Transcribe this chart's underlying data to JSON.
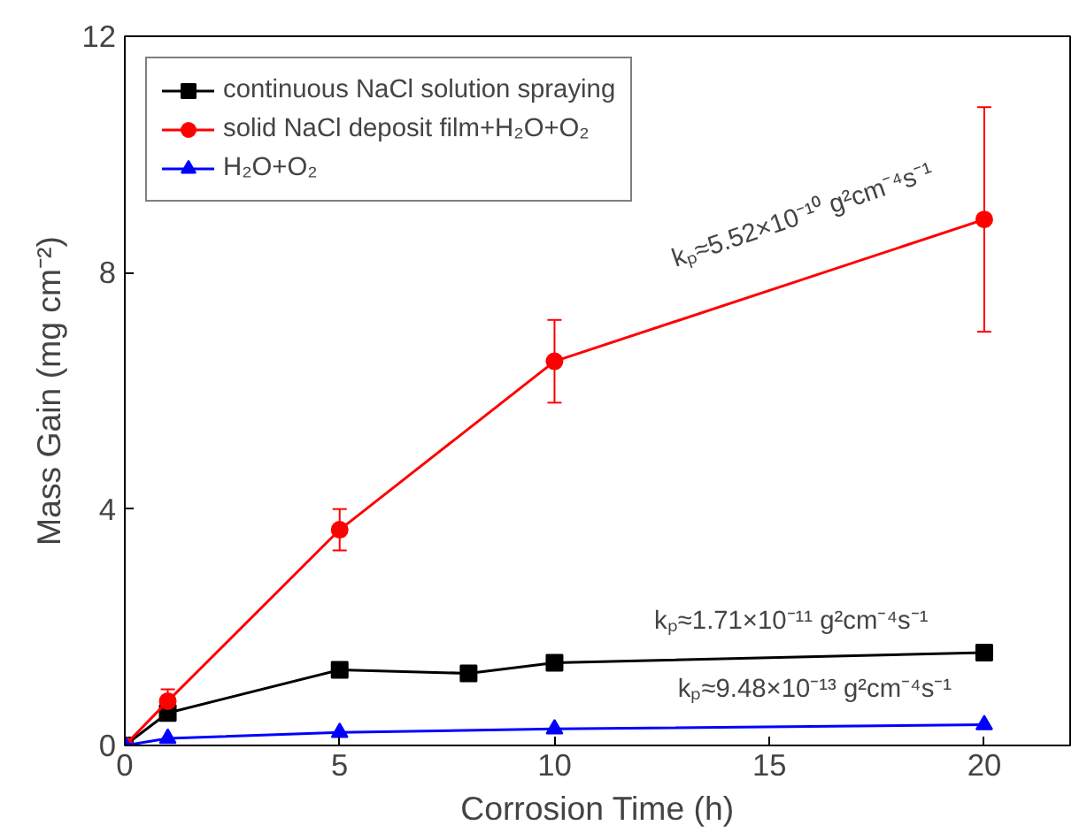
{
  "chart_data": {
    "type": "line",
    "xlabel": "Corrosion Time (h)",
    "ylabel": "Mass Gain (mg cm⁻²)",
    "x": [
      0,
      1,
      5,
      10,
      20
    ],
    "series": [
      {
        "name": "continuous NaCl solution spraying",
        "color": "#000000",
        "marker": "square",
        "x": [
          0,
          1,
          5,
          8,
          10,
          20
        ],
        "values": [
          0,
          0.55,
          1.28,
          1.22,
          1.4,
          1.57
        ],
        "errors": [
          null,
          null,
          null,
          0.12,
          null,
          null
        ]
      },
      {
        "name": "solid NaCl deposit film+H₂O+O₂",
        "color": "#ff0000",
        "marker": "circle",
        "values": [
          0,
          0.75,
          3.65,
          6.5,
          8.9
        ],
        "errors": [
          null,
          0.2,
          0.35,
          0.7,
          1.9
        ]
      },
      {
        "name": "H₂O+O₂",
        "color": "#0000ff",
        "marker": "triangle",
        "values": [
          0,
          0.12,
          0.22,
          0.28,
          0.35
        ]
      }
    ],
    "xlim": [
      0,
      22
    ],
    "ylim": [
      0,
      12
    ],
    "xticks": [
      0,
      5,
      10,
      15,
      20
    ],
    "yticks": [
      0,
      4,
      8,
      12
    ],
    "grid": false,
    "legend": "top left",
    "annotations": [
      "kₚ≈5.52×10⁻¹⁰ g²cm⁻⁴s⁻¹",
      "kₚ≈1.71×10⁻¹¹ g²cm⁻⁴s⁻¹",
      "kₚ≈9.48×10⁻¹³ g²cm⁻⁴s⁻¹"
    ]
  }
}
